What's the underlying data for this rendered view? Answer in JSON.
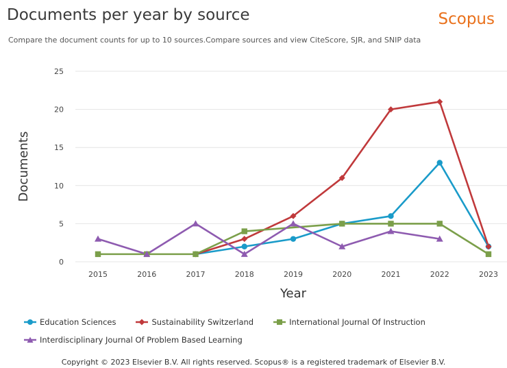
{
  "header": {
    "title": "Documents per year by source",
    "brand": "Scopus",
    "subtitle": "Compare the document counts for up to 10 sources.Compare sources and view CiteScore, SJR, and SNIP data"
  },
  "footer": {
    "copyright": "Copyright © 2023 Elsevier B.V. All rights reserved. Scopus® is a registered trademark of Elsevier B.V."
  },
  "chart_data": {
    "type": "line",
    "xlabel": "Year",
    "ylabel": "Documents",
    "ylim": [
      0,
      25
    ],
    "yticks": [
      0,
      5,
      10,
      15,
      20,
      25
    ],
    "grid": "horizontal",
    "legend_position": "bottom",
    "categories": [
      "2015",
      "2016",
      "2017",
      "2018",
      "2019",
      "2020",
      "2021",
      "2022",
      "2023"
    ],
    "series": [
      {
        "name": "Education Sciences",
        "color": "#1a9bc9",
        "marker": "circle",
        "x": [
          "2017",
          "2018",
          "2019",
          "2020",
          "2021",
          "2022",
          "2023"
        ],
        "values": [
          1,
          2,
          3,
          5,
          6,
          13,
          2
        ]
      },
      {
        "name": "Sustainability Switzerland",
        "color": "#c0393b",
        "marker": "diamond",
        "x": [
          "2017",
          "2018",
          "2019",
          "2020",
          "2021",
          "2022",
          "2023"
        ],
        "values": [
          1,
          3,
          6,
          11,
          20,
          21,
          2
        ]
      },
      {
        "name": "International Journal Of Instruction",
        "color": "#7b9f4a",
        "marker": "square",
        "x": [
          "2015",
          "2016",
          "2017",
          "2018",
          "2019",
          "2020",
          "2021",
          "2022",
          "2023"
        ],
        "values": [
          1,
          1,
          1,
          4,
          4.5,
          5,
          5,
          5,
          1
        ]
      },
      {
        "name": "Interdisciplinary Journal Of Problem Based Learning",
        "color": "#8e5bb0",
        "marker": "triangle",
        "x": [
          "2015",
          "2016",
          "2017",
          "2018",
          "2019",
          "2020",
          "2021",
          "2022"
        ],
        "values": [
          3,
          1,
          5,
          1,
          5,
          2,
          4,
          3
        ]
      }
    ]
  }
}
